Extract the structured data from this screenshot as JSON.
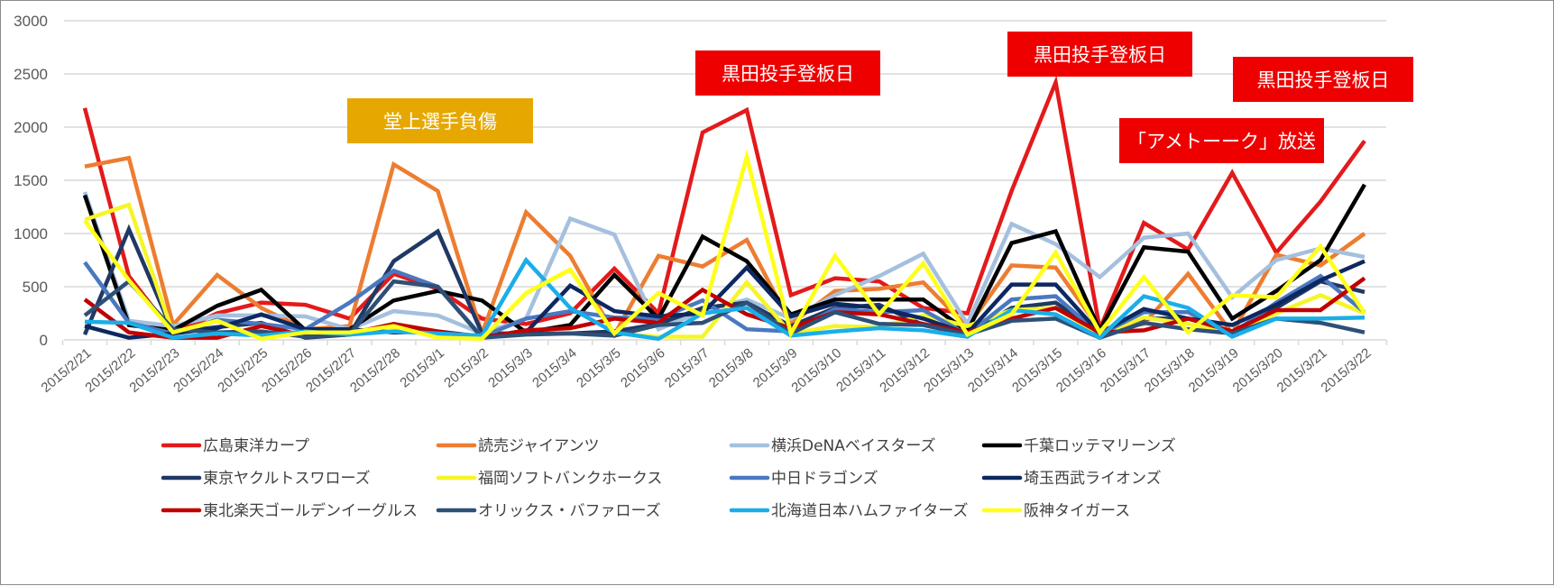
{
  "chart_data": {
    "type": "line",
    "title": "",
    "xlabel": "",
    "ylabel": "",
    "ylim": [
      0,
      3000
    ],
    "yticks": [
      0,
      500,
      1000,
      1500,
      2000,
      2500,
      3000
    ],
    "grid": true,
    "legend_position": "bottom",
    "x": [
      "2015/2/21",
      "2015/2/22",
      "2015/2/23",
      "2015/2/24",
      "2015/2/25",
      "2015/2/26",
      "2015/2/27",
      "2015/2/28",
      "2015/3/1",
      "2015/3/2",
      "2015/3/3",
      "2015/3/4",
      "2015/3/5",
      "2015/3/6",
      "2015/3/7",
      "2015/3/8",
      "2015/3/9",
      "2015/3/10",
      "2015/3/11",
      "2015/3/12",
      "2015/3/13",
      "2015/3/14",
      "2015/3/15",
      "2015/3/16",
      "2015/3/17",
      "2015/3/18",
      "2015/3/19",
      "2015/3/20",
      "2015/3/21",
      "2015/3/22"
    ],
    "series": [
      {
        "name": "広島東洋カープ",
        "color": "#e31a1c",
        "values": [
          2180,
          600,
          60,
          250,
          350,
          330,
          200,
          620,
          480,
          200,
          150,
          250,
          670,
          250,
          1950,
          2160,
          420,
          580,
          550,
          300,
          250,
          1400,
          2420,
          100,
          1100,
          850,
          1570,
          820,
          1300,
          1870
        ]
      },
      {
        "name": "読売ジャイアンツ",
        "color": "#ed7d31",
        "values": [
          1630,
          1710,
          140,
          610,
          300,
          100,
          130,
          1650,
          1400,
          60,
          1200,
          790,
          50,
          790,
          690,
          940,
          150,
          460,
          480,
          540,
          120,
          700,
          680,
          100,
          150,
          620,
          60,
          800,
          700,
          1000
        ]
      },
      {
        "name": "横浜DeNAベイスターズ",
        "color": "#a5c0de",
        "values": [
          1390,
          180,
          130,
          230,
          230,
          220,
          100,
          270,
          230,
          60,
          200,
          1140,
          990,
          100,
          270,
          380,
          200,
          420,
          600,
          810,
          150,
          1090,
          900,
          590,
          960,
          1000,
          400,
          750,
          860,
          780
        ]
      },
      {
        "name": "千葉ロッテマリーンズ",
        "color": "#000000",
        "values": [
          1360,
          140,
          90,
          320,
          470,
          90,
          100,
          370,
          460,
          370,
          70,
          140,
          610,
          200,
          970,
          740,
          240,
          380,
          380,
          380,
          80,
          910,
          1020,
          90,
          870,
          830,
          200,
          460,
          750,
          1460
        ]
      },
      {
        "name": "東京ヤクルトスワローズ",
        "color": "#203864",
        "values": [
          50,
          1040,
          70,
          120,
          160,
          20,
          50,
          740,
          1020,
          60,
          60,
          60,
          80,
          150,
          300,
          350,
          130,
          300,
          330,
          140,
          50,
          300,
          350,
          70,
          200,
          200,
          80,
          300,
          550,
          450
        ]
      },
      {
        "name": "福岡ソフトバンクホークス",
        "color": "#f5f52a",
        "values": [
          1130,
          1270,
          60,
          180,
          10,
          70,
          70,
          120,
          30,
          10,
          440,
          660,
          60,
          30,
          30,
          540,
          60,
          130,
          120,
          230,
          130,
          280,
          300,
          50,
          210,
          150,
          50,
          250,
          420,
          250
        ]
      },
      {
        "name": "中日ドラゴンズ",
        "color": "#4a78c0",
        "values": [
          730,
          160,
          60,
          190,
          150,
          100,
          350,
          650,
          500,
          30,
          200,
          270,
          210,
          200,
          370,
          100,
          80,
          290,
          260,
          280,
          50,
          380,
          410,
          50,
          260,
          260,
          60,
          350,
          600,
          260
        ]
      },
      {
        "name": "埼玉西武ライオンズ",
        "color": "#0d2860",
        "values": [
          130,
          20,
          60,
          110,
          240,
          100,
          100,
          70,
          80,
          30,
          70,
          510,
          270,
          220,
          250,
          680,
          220,
          340,
          300,
          200,
          60,
          520,
          520,
          60,
          290,
          200,
          140,
          330,
          560,
          740
        ]
      },
      {
        "name": "東北楽天ゴールデンイーグルス",
        "color": "#c00000",
        "values": [
          380,
          70,
          20,
          20,
          130,
          40,
          60,
          150,
          80,
          20,
          90,
          110,
          200,
          160,
          470,
          240,
          110,
          260,
          240,
          150,
          70,
          200,
          300,
          70,
          90,
          200,
          80,
          280,
          280,
          580
        ]
      },
      {
        "name": "オリックス・バファローズ",
        "color": "#2e5077",
        "values": [
          230,
          550,
          100,
          70,
          80,
          30,
          50,
          550,
          500,
          20,
          50,
          60,
          40,
          140,
          160,
          350,
          60,
          260,
          150,
          140,
          50,
          180,
          200,
          20,
          160,
          100,
          60,
          200,
          160,
          70
        ]
      },
      {
        "name": "北海道日本ハムファイターズ",
        "color": "#1aaee8",
        "values": [
          170,
          160,
          20,
          60,
          40,
          80,
          50,
          80,
          60,
          40,
          750,
          300,
          70,
          10,
          250,
          300,
          40,
          80,
          110,
          90,
          30,
          280,
          240,
          20,
          410,
          300,
          30,
          200,
          200,
          210
        ]
      },
      {
        "name": "阪神タイガース",
        "color": "#ffff1a",
        "values": [
          1120,
          560,
          70,
          180,
          10,
          70,
          70,
          130,
          20,
          10,
          440,
          660,
          60,
          440,
          230,
          1720,
          60,
          790,
          240,
          720,
          50,
          240,
          820,
          70,
          590,
          70,
          420,
          400,
          880,
          250
        ]
      }
    ],
    "annotations": [
      {
        "text": "堂上選手負傷",
        "color": "#e6a800",
        "near": "2015/2/28 – 2015/3/3"
      },
      {
        "text": "黒田投手登板日",
        "color": "#ee0000",
        "near": "2015/3/7 – 2015/3/10"
      },
      {
        "text": "黒田投手登板日",
        "color": "#ee0000",
        "near": "2015/3/14 – 2015/3/17"
      },
      {
        "text": "「アメトーーク」放送",
        "color": "#ee0000",
        "near": "2015/3/17 – 2015/3/21"
      },
      {
        "text": "黒田投手登板日",
        "color": "#ee0000",
        "near": "2015/3/20 – 2015/3/22"
      }
    ]
  }
}
